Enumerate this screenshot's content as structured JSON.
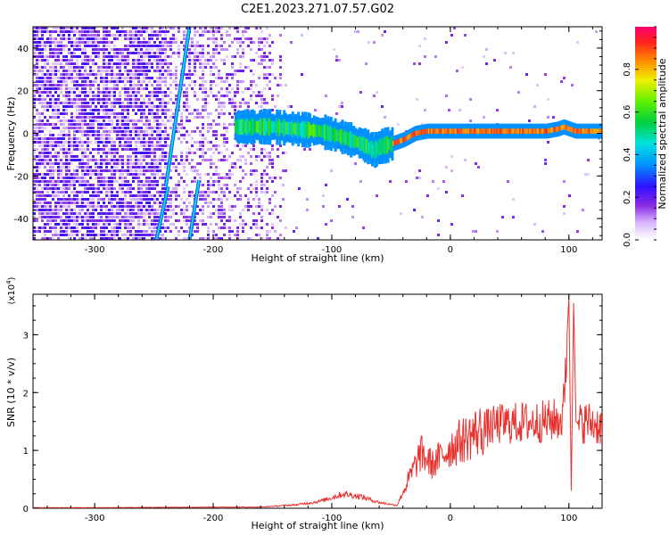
{
  "title": "C2E1.2023.271.07.57.G02",
  "chart_data": [
    {
      "type": "heatmap",
      "xlabel": "Height of straight line (km)",
      "ylabel": "Frequency (Hz)",
      "xlim": [
        -352,
        128
      ],
      "ylim": [
        -50,
        50
      ],
      "x_ticks": [
        -300,
        -200,
        -100,
        0,
        100
      ],
      "y_ticks": [
        -40,
        -20,
        0,
        20,
        40
      ],
      "colorbar": {
        "label": "Normalized spectral amplitude",
        "range": [
          0,
          1
        ],
        "ticks": [
          0.0,
          0.2,
          0.4,
          0.6,
          0.8
        ]
      },
      "ridge": {
        "x": [
          -182,
          -170,
          -150,
          -130,
          -110,
          -90,
          -75,
          -65,
          -58,
          -50,
          -40,
          -30,
          -20,
          0,
          20,
          60,
          80,
          90,
          95,
          105,
          128
        ],
        "freq": [
          3,
          3,
          3,
          2,
          1,
          -2,
          -5,
          -8,
          -6,
          -5,
          -3,
          0,
          1,
          1,
          1,
          1,
          1,
          2,
          3,
          1,
          1
        ]
      },
      "sweeps": [
        {
          "x": [
            -240,
            -220
          ],
          "freq": [
            -25,
            50
          ]
        },
        {
          "x": [
            -248,
            -238
          ],
          "freq": [
            -50,
            -25
          ]
        },
        {
          "x": [
            -220,
            -212
          ],
          "freq": [
            -50,
            -22
          ]
        }
      ],
      "grid": false
    },
    {
      "type": "line",
      "xlabel": "Height of straight line (km)",
      "ylabel": "SNR (10 * v/v)",
      "y_multiplier": "(x10^4)",
      "xlim": [
        -352,
        128
      ],
      "ylim": [
        0,
        3.7
      ],
      "x_ticks": [
        -300,
        -200,
        -100,
        0,
        100
      ],
      "y_ticks": [
        0,
        1,
        2,
        3
      ],
      "color": "#e8322f",
      "series": [
        {
          "x": [
            -352,
            -300,
            -200,
            -160,
            -130,
            -110,
            -90,
            -75,
            -60,
            -45,
            -35,
            -25,
            -15,
            0,
            20,
            40,
            60,
            80,
            95,
            100,
            102,
            104,
            106,
            108,
            115,
            128
          ],
          "values": [
            0.01,
            0.01,
            0.02,
            0.02,
            0.06,
            0.12,
            0.25,
            0.2,
            0.1,
            0.05,
            0.5,
            0.95,
            0.75,
            1.05,
            1.3,
            1.45,
            1.48,
            1.5,
            1.55,
            3.65,
            0.3,
            3.55,
            1.5,
            1.45,
            1.5,
            1.42
          ]
        }
      ],
      "grid": false
    }
  ]
}
